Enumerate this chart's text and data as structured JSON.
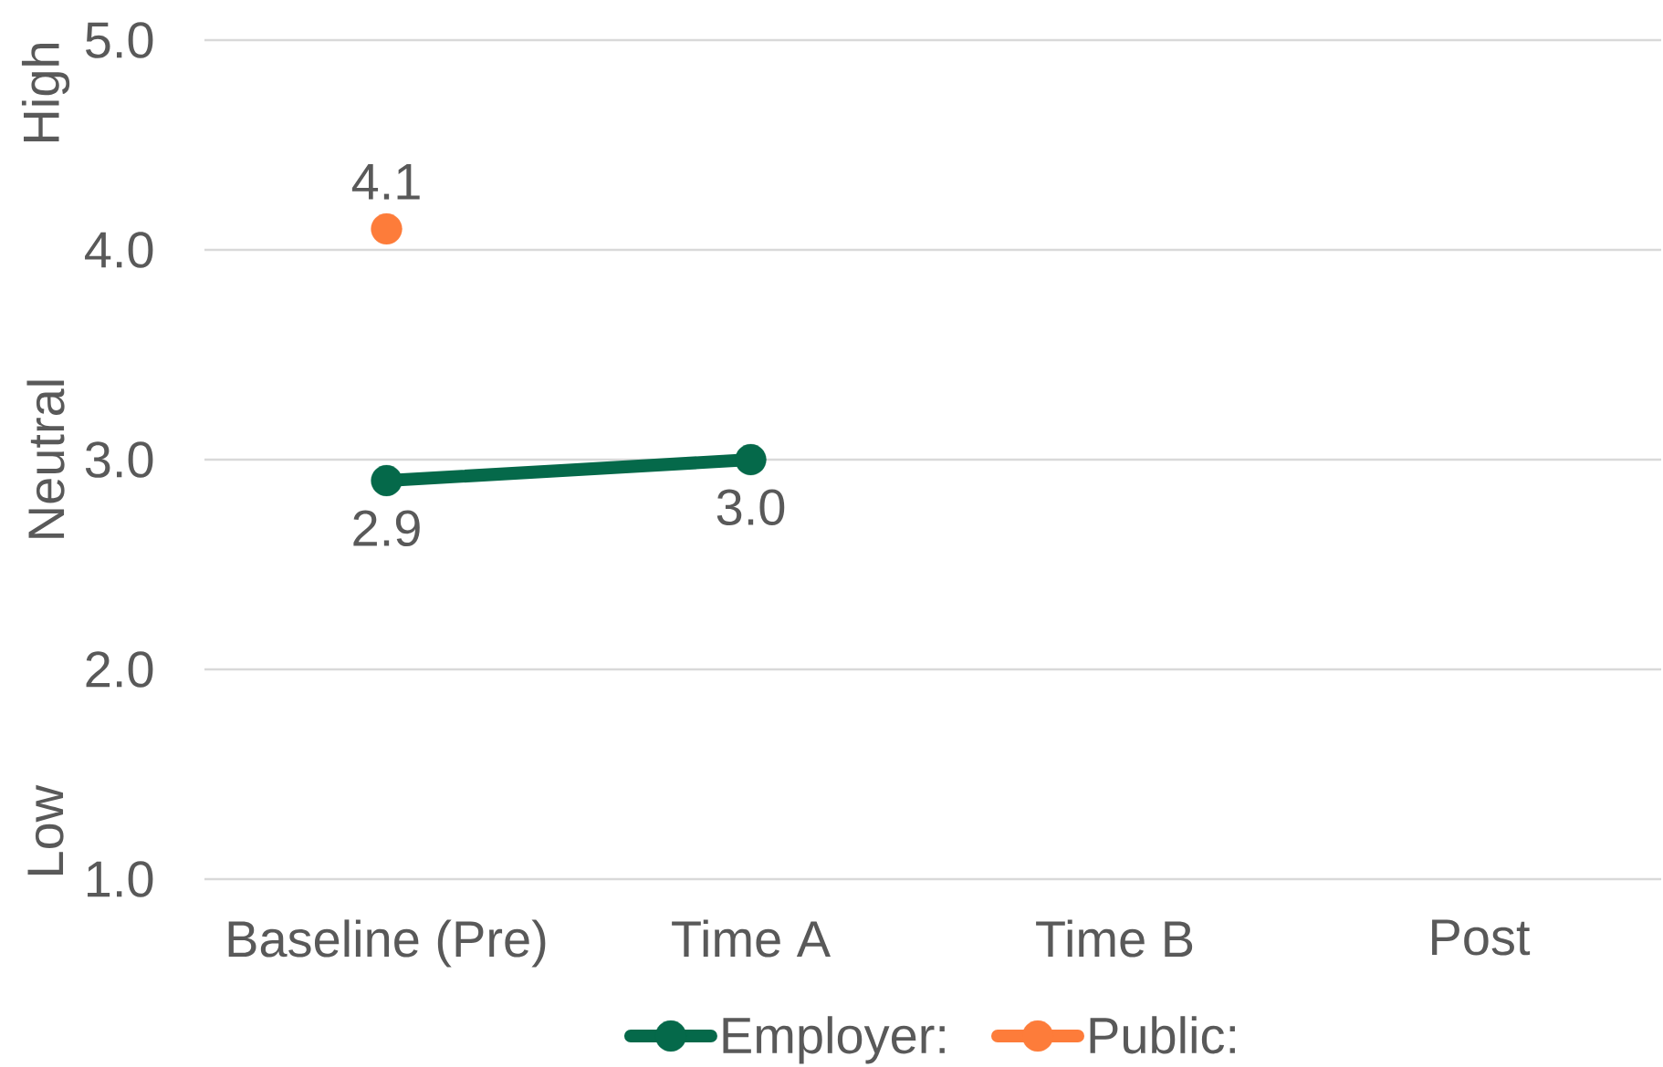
{
  "chart_data": {
    "type": "line",
    "categories": [
      "Baseline (Pre)",
      "Time A",
      "Time B",
      "Post"
    ],
    "series": [
      {
        "name": "Employer:",
        "color": "#05694a",
        "values": [
          2.9,
          3.0,
          null,
          null
        ],
        "value_labels": [
          "2.9",
          "3.0",
          null,
          null
        ]
      },
      {
        "name": "Public:",
        "color": "#fd7c3a",
        "values": [
          4.1,
          null,
          null,
          null
        ],
        "value_labels": [
          "4.1",
          null,
          null,
          null
        ]
      }
    ],
    "ylim": [
      1,
      5
    ],
    "yticks": [
      {
        "value": 1,
        "label": "1.0"
      },
      {
        "value": 2,
        "label": "2.0"
      },
      {
        "value": 3,
        "label": "3.0"
      },
      {
        "value": 4,
        "label": "4.0"
      },
      {
        "value": 5,
        "label": "5.0"
      }
    ],
    "grid": "y",
    "legend": "bottom",
    "marker": "circle",
    "line_style": "solid",
    "annotations": [
      "High",
      "Neutral",
      "Low"
    ]
  }
}
